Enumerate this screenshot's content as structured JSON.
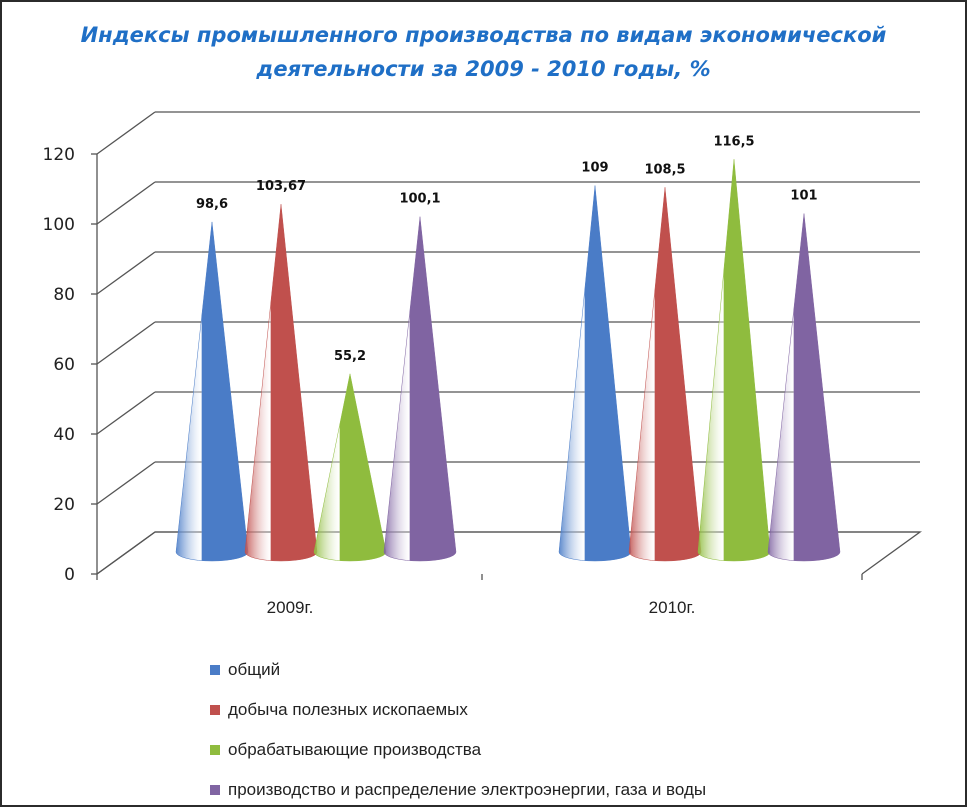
{
  "title_line1": "Индексы промышленного производства  по видам экономической",
  "title_line2": "деятельности за 2009 - 2010 годы, %",
  "colors": [
    "#4a7cc7",
    "#c0504d",
    "#8fbc3e",
    "#8064a2"
  ],
  "chart_data": {
    "type": "bar",
    "shape": "cone-3d",
    "categories": [
      "2009г.",
      "2010г."
    ],
    "series": [
      {
        "name": "общий",
        "values": [
          98.6,
          109
        ],
        "labels": [
          "98,6",
          "109"
        ]
      },
      {
        "name": "добыча полезных ископаемых",
        "values": [
          103.67,
          108.5
        ],
        "labels": [
          "103,67",
          "108,5"
        ]
      },
      {
        "name": "обрабатывающие производства",
        "values": [
          55.2,
          116.5
        ],
        "labels": [
          "55,2",
          "116,5"
        ]
      },
      {
        "name": "производство и распределение электроэнергии,  газа и воды",
        "values": [
          100.1,
          101
        ],
        "labels": [
          "100,1",
          "101"
        ]
      }
    ],
    "ylim": [
      0,
      120
    ],
    "yticks": [
      0,
      20,
      40,
      60,
      80,
      100,
      120
    ],
    "grid": true,
    "legend_position": "bottom"
  }
}
